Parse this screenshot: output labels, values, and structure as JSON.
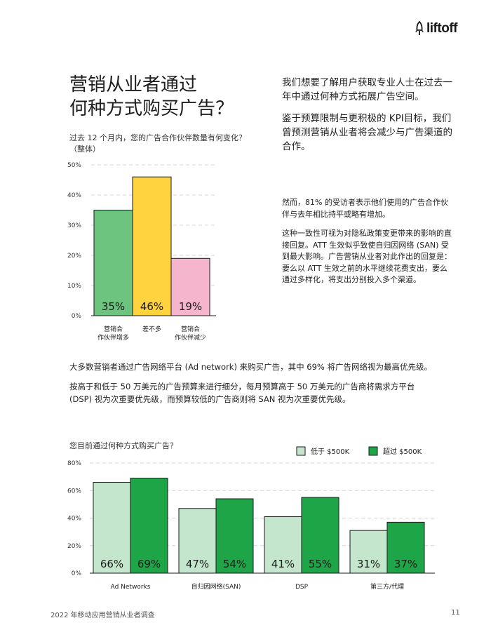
{
  "logo": {
    "text": "liftoff",
    "icon": "rocket-icon"
  },
  "headline": {
    "line1": "营销从业者通过",
    "line2": "何种方式购买广告？"
  },
  "intro": {
    "p1": "我们想要了解用户获取专业人士在过去一年中通过何种方式拓展广告空间。",
    "p2": "鉴于预算限制与更积极的 KPI目标，我们曾预测营销从业者将会减少与广告渠道的合作。"
  },
  "detail": {
    "p1": "然而，81% 的受访者表示他们使用的广告合作伙伴与去年相比持平或略有增加。",
    "p2": "这种一致性可视为对隐私政策变更带来的影响的直接回复。ATT 生效似乎致使自归因网络 (SAN) 受到最大影响。广告营销从业者对此作出的回复是：要么以 ATT 生效之前的水平继续花费支出，要么通过多样化，将支出分别投入多个渠道。"
  },
  "paras": {
    "p1": "大多数营销者通过广告网络平台 (Ad network) 来购买广告，其中 69% 将广告网络视为最高优先级。",
    "p2": "按高于和低于 50 万美元的广告预算来进行细分，每月预算高于 50 万美元的广告商将需求方平台 (DSP) 视为次重要优先级，而预算较低的广告商则将 SAN 视为次重要优先级。"
  },
  "footer": {
    "text": "2022 年移动应用营销从业者调查",
    "page": "11"
  },
  "chart_data": [
    {
      "type": "bar",
      "title": "过去 12 个月内，您的广告合作伙伴数量有何变化？（整体）",
      "categories": [
        [
          "营销合",
          "作伙伴增多"
        ],
        [
          "差不多"
        ],
        [
          "营销合",
          "作伙伴减少"
        ]
      ],
      "values": [
        35,
        46,
        19
      ],
      "value_labels": [
        "35%",
        "46%",
        "19%"
      ],
      "colors": [
        "#6cc47f",
        "#ffd23f",
        "#f5b5cc"
      ],
      "ylim": [
        0,
        50
      ],
      "yticks": [
        0,
        10,
        20,
        30,
        40,
        50
      ],
      "ytick_labels": [
        "0%",
        "10%",
        "20%",
        "30%",
        "40%",
        "50%"
      ],
      "grid": true
    },
    {
      "type": "bar",
      "title": "您目前通过何种方式购买广告？",
      "categories": [
        "Ad Networks",
        "自归因网络(SAN)",
        "DSP",
        "第三方/代理"
      ],
      "series": [
        {
          "name": "低于 $500K",
          "values": [
            66,
            47,
            41,
            31
          ],
          "labels": [
            "66%",
            "47%",
            "41%",
            "31%"
          ],
          "color": "#c3e6cd"
        },
        {
          "name": "超过 $500K",
          "values": [
            69,
            54,
            55,
            37
          ],
          "labels": [
            "69%",
            "54%",
            "55%",
            "37%"
          ],
          "color": "#1ea548"
        }
      ],
      "ylim": [
        0,
        80
      ],
      "yticks": [
        0,
        20,
        40,
        60,
        80
      ],
      "ytick_labels": [
        "0%",
        "20%",
        "40%",
        "60%",
        "80%"
      ],
      "grid": true,
      "legend": "top-right"
    }
  ]
}
